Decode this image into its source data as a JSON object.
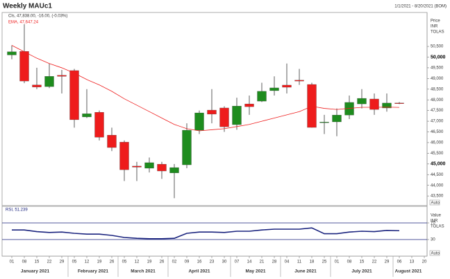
{
  "title": "Weekly MAUc1",
  "subtitle": "1/1/2021 - 8/20/2021 (BOM)",
  "chart_data": [
    {
      "type": "candlestick",
      "categories": [
        "01",
        "08",
        "15",
        "22",
        "29",
        "05",
        "12",
        "19",
        "26",
        "05",
        "12",
        "19",
        "26",
        "02",
        "09",
        "16",
        "23",
        "30",
        "07",
        "14",
        "21",
        "28",
        "04",
        "11",
        "18",
        "25",
        "01",
        "08",
        "15",
        "22",
        "29",
        "06",
        "13",
        "20"
      ],
      "months": [
        "January 2021",
        "February 2021",
        "March 2021",
        "April 2021",
        "May 2021",
        "June 2021",
        "July 2021",
        "August 2021"
      ],
      "legend_labels": [
        "Cls, 47,838.00, -16.00, (-0.03%)",
        "EMA, 47,647.24"
      ],
      "axis_labels": [
        "Price",
        "INR",
        "TOLAS"
      ],
      "auto_label": "Auto",
      "up_color": "#1e8c1e",
      "down_color": "#ee1c1c",
      "open": [
        50100,
        50270,
        48700,
        48620,
        49150,
        49370,
        47200,
        47420,
        46350,
        46020,
        44900,
        44800,
        44990,
        44580,
        44960,
        46580,
        47520,
        47620,
        46840,
        47810,
        47940,
        48430,
        48690,
        48920,
        48720,
        46930,
        46970,
        47290,
        47810,
        48040,
        47620,
        47854,
        null,
        null
      ],
      "high": [
        50550,
        51540,
        49500,
        49700,
        49400,
        49450,
        48500,
        47500,
        46700,
        46100,
        45100,
        45300,
        45100,
        45000,
        46900,
        47500,
        48500,
        47700,
        48100,
        48200,
        48800,
        49100,
        49700,
        49450,
        48800,
        47300,
        47600,
        48200,
        48500,
        48300,
        48300,
        47900,
        null,
        null
      ],
      "low": [
        49900,
        48780,
        48500,
        48550,
        48300,
        46700,
        47150,
        46100,
        45600,
        44200,
        44200,
        44600,
        44300,
        43400,
        44800,
        46400,
        46900,
        46500,
        46600,
        47300,
        47900,
        48200,
        48300,
        48700,
        46700,
        46400,
        46300,
        47100,
        47600,
        47300,
        47450,
        47800,
        null,
        null
      ],
      "close": [
        50250,
        48880,
        48600,
        49100,
        49100,
        47070,
        47350,
        46250,
        45770,
        44730,
        44850,
        45060,
        44670,
        44830,
        46580,
        47390,
        47330,
        46740,
        47710,
        47680,
        48400,
        48560,
        48590,
        48880,
        46710,
        46960,
        47290,
        47880,
        48070,
        47550,
        47850,
        47838,
        null,
        null
      ],
      "series": [
        {
          "name": "EMA",
          "color": "#ee1c1c",
          "values": [
            50550,
            50250,
            49950,
            49700,
            49500,
            49250,
            48950,
            48700,
            48400,
            48050,
            47750,
            47450,
            47150,
            46850,
            46650,
            46550,
            46600,
            46650,
            46750,
            46850,
            47000,
            47150,
            47300,
            47450,
            47700,
            47600,
            47550,
            47600,
            47650,
            47650,
            47660,
            47647.24,
            null,
            null
          ]
        }
      ],
      "ylim": [
        43050,
        52090
      ],
      "yticks": [
        {
          "value": 43500,
          "label": "43,500"
        },
        {
          "value": 44000,
          "label": "44,000"
        },
        {
          "value": 44500,
          "label": "44,500"
        },
        {
          "value": 45000,
          "label": "45,000"
        },
        {
          "value": 45500,
          "label": "45,500"
        },
        {
          "value": 46000,
          "label": "46,000"
        },
        {
          "value": 46500,
          "label": "46,500"
        },
        {
          "value": 47000,
          "label": "47,000"
        },
        {
          "value": 47500,
          "label": "47,500"
        },
        {
          "value": 48000,
          "label": "48,000"
        },
        {
          "value": 48500,
          "label": "48,500"
        },
        {
          "value": 49000,
          "label": "49,000"
        },
        {
          "value": 49500,
          "label": "49,500"
        },
        {
          "value": 50000,
          "label": "50,000"
        },
        {
          "value": 50500,
          "label": "50,500"
        }
      ]
    },
    {
      "type": "line",
      "legend_labels": [
        "RSI, 51.239"
      ],
      "axis_labels": [
        "Value",
        "INR",
        "TOLAS"
      ],
      "auto_label": "Auto",
      "series": [
        {
          "name": "RSI",
          "color": "#1a237e",
          "values": [
            53,
            53,
            49,
            47,
            48,
            45,
            43,
            43,
            40,
            35,
            33,
            32,
            32,
            33,
            45,
            48,
            48,
            47,
            50,
            50,
            53,
            55,
            55,
            55,
            58,
            44,
            44,
            48,
            50,
            49,
            52,
            51.239,
            null,
            null
          ]
        }
      ],
      "ylim": [
        -10,
        110
      ],
      "yticks": [
        70,
        30
      ],
      "grid": true,
      "grid_color": "#1a237e"
    }
  ]
}
